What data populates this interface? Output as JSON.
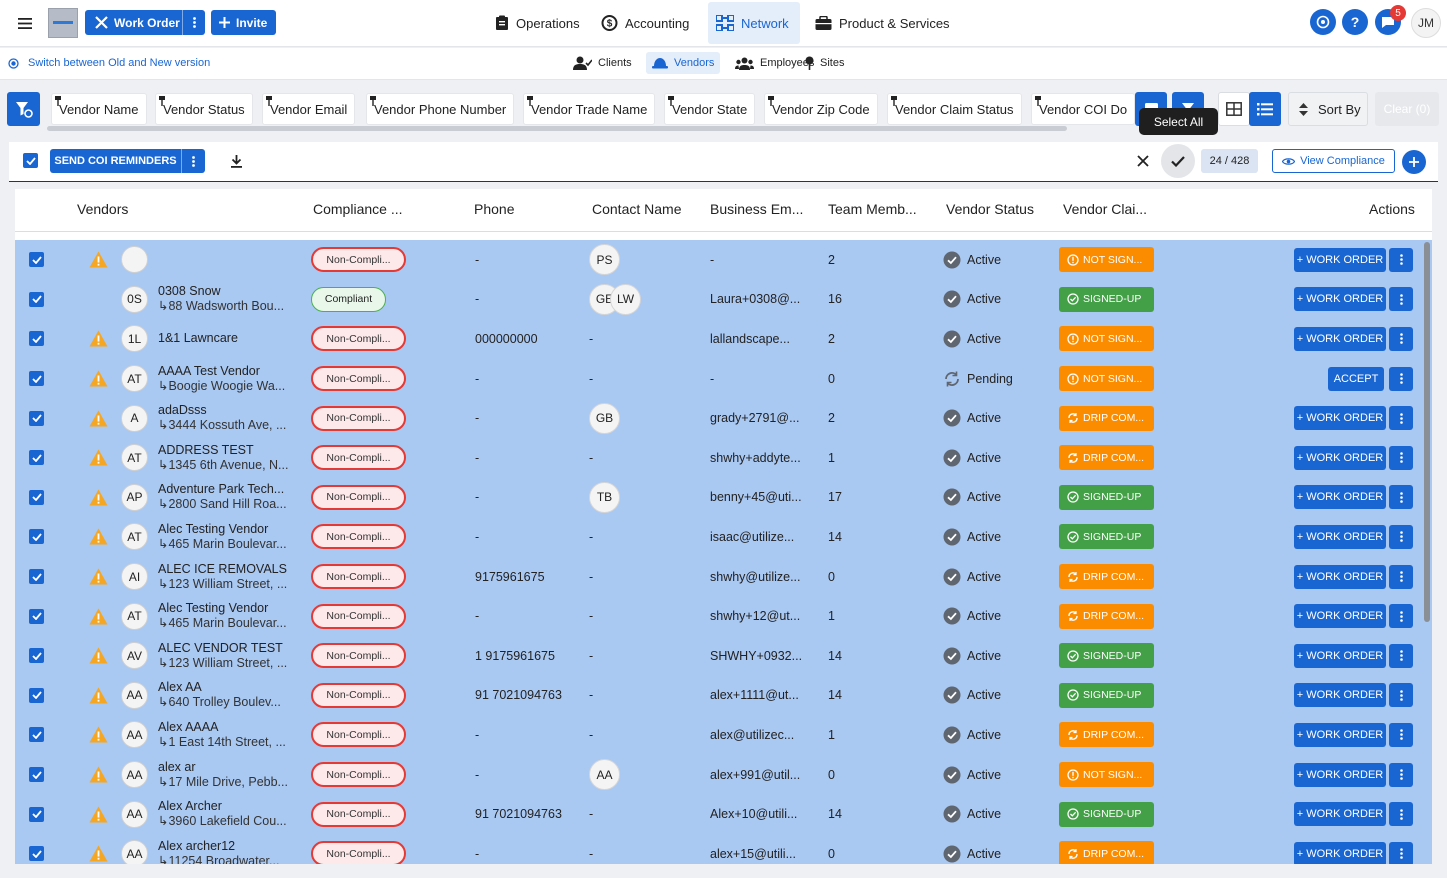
{
  "app": {
    "logo_text": "logo"
  },
  "topbar": {
    "work_order_label": "Work Order",
    "invite_label": "Invite",
    "nav": [
      {
        "label": "Operations",
        "icon": "clipboard-icon"
      },
      {
        "label": "Accounting",
        "icon": "money-icon"
      },
      {
        "label": "Network",
        "icon": "network-icon",
        "active": true
      },
      {
        "label": "Product & Services",
        "icon": "briefcase-icon"
      }
    ],
    "notification_count": "5",
    "help_label": "?",
    "user_initials": "JM"
  },
  "subbar": {
    "switch_label": "Switch between Old and New version",
    "tabs": [
      {
        "label": "Clients",
        "icon": "user-icon"
      },
      {
        "label": "Vendors",
        "icon": "hardhat-icon",
        "active": true
      },
      {
        "label": "Employees",
        "icon": "team-icon"
      },
      {
        "label": "Sites",
        "icon": "pin-icon"
      }
    ]
  },
  "filters": {
    "chips": [
      "Vendor Name",
      "Vendor Status",
      "Vendor Email",
      "Vendor Phone Number",
      "Vendor Trade Name",
      "Vendor State",
      "Vendor Zip Code",
      "Vendor Claim Status",
      "Vendor COI Do"
    ],
    "tooltip": "Select All",
    "sort_label": "Sort By",
    "clear_label": "Clear (0)"
  },
  "actionbar": {
    "send_label": "SEND COI REMINDERS",
    "counter": "24 / 428",
    "view_compliance_label": "View Compliance"
  },
  "table": {
    "headers": {
      "vendors": "Vendors",
      "compliance": "Compliance ...",
      "phone": "Phone",
      "contact": "Contact Name",
      "email": "Business Em...",
      "team": "Team Memb...",
      "status": "Vendor Status",
      "claim": "Vendor Clai...",
      "actions": "Actions"
    },
    "rows": [
      {
        "warn": true,
        "initials": "",
        "name": "",
        "address": "",
        "compliance": "Non-Compli...",
        "compliance_type": "non",
        "phone": "-",
        "contacts": [
          "PS"
        ],
        "email": "-",
        "team": "2",
        "status": "Active",
        "claim": "NOT SIGN...",
        "claim_type": "notsigned",
        "action": "+ WORK ORDER"
      },
      {
        "warn": false,
        "initials": "0S",
        "name": "0308 Snow",
        "address": "↳88 Wadsworth Bou...",
        "compliance": "Compliant",
        "compliance_type": "comp",
        "phone": "-",
        "contacts": [
          "GE",
          "LW"
        ],
        "email": "Laura+0308@...",
        "team": "16",
        "status": "Active",
        "claim": "SIGNED-UP",
        "claim_type": "signed",
        "action": "+ WORK ORDER"
      },
      {
        "warn": true,
        "initials": "1L",
        "name": "1&1 Lawncare",
        "address": "",
        "compliance": "Non-Compli...",
        "compliance_type": "non",
        "phone": "000000000",
        "contacts": [],
        "email": "lallandscape...",
        "team": "2",
        "status": "Active",
        "claim": "NOT SIGN...",
        "claim_type": "notsigned",
        "action": "+ WORK ORDER"
      },
      {
        "warn": true,
        "initials": "AT",
        "name": "AAAA Test Vendor",
        "address": "↳Boogie Woogie Wa...",
        "compliance": "Non-Compli...",
        "compliance_type": "non",
        "phone": "-",
        "contacts": [],
        "email": "-",
        "team": "0",
        "status": "Pending",
        "claim": "NOT SIGN...",
        "claim_type": "notsigned",
        "action": "ACCEPT"
      },
      {
        "warn": true,
        "initials": "A",
        "name": "adaDsss",
        "address": "↳3444 Kossuth Ave, ...",
        "compliance": "Non-Compli...",
        "compliance_type": "non",
        "phone": "-",
        "contacts": [
          "GB"
        ],
        "email": "grady+2791@...",
        "team": "2",
        "status": "Active",
        "claim": "DRIP COM...",
        "claim_type": "drip",
        "action": "+ WORK ORDER"
      },
      {
        "warn": true,
        "initials": "AT",
        "name": "ADDRESS TEST",
        "address": "↳1345 6th Avenue, N...",
        "compliance": "Non-Compli...",
        "compliance_type": "non",
        "phone": "-",
        "contacts": [],
        "email": "shwhy+addyte...",
        "team": "1",
        "status": "Active",
        "claim": "DRIP COM...",
        "claim_type": "drip",
        "action": "+ WORK ORDER"
      },
      {
        "warn": true,
        "initials": "AP",
        "name": "Adventure Park Tech...",
        "address": "↳2800 Sand Hill Roa...",
        "compliance": "Non-Compli...",
        "compliance_type": "non",
        "phone": "-",
        "contacts": [
          "TB"
        ],
        "email": "benny+45@uti...",
        "team": "17",
        "status": "Active",
        "claim": "SIGNED-UP",
        "claim_type": "signed",
        "action": "+ WORK ORDER"
      },
      {
        "warn": true,
        "initials": "AT",
        "name": "Alec Testing Vendor",
        "address": "↳465 Marin Boulevar...",
        "compliance": "Non-Compli...",
        "compliance_type": "non",
        "phone": "-",
        "contacts": [],
        "email": "isaac@utilize...",
        "team": "14",
        "status": "Active",
        "claim": "SIGNED-UP",
        "claim_type": "signed",
        "action": "+ WORK ORDER"
      },
      {
        "warn": true,
        "initials": "AI",
        "name": "ALEC ICE REMOVALS",
        "address": "↳123 William Street, ...",
        "compliance": "Non-Compli...",
        "compliance_type": "non",
        "phone": "9175961675",
        "contacts": [],
        "email": "shwhy@utilize...",
        "team": "0",
        "status": "Active",
        "claim": "DRIP COM...",
        "claim_type": "drip",
        "action": "+ WORK ORDER"
      },
      {
        "warn": true,
        "initials": "AT",
        "name": "Alec Testing Vendor",
        "address": "↳465 Marin Boulevar...",
        "compliance": "Non-Compli...",
        "compliance_type": "non",
        "phone": "-",
        "contacts": [],
        "email": "shwhy+12@ut...",
        "team": "1",
        "status": "Active",
        "claim": "DRIP COM...",
        "claim_type": "drip",
        "action": "+ WORK ORDER"
      },
      {
        "warn": true,
        "initials": "AV",
        "name": "ALEC VENDOR TEST",
        "address": "↳123 William Street, ...",
        "compliance": "Non-Compli...",
        "compliance_type": "non",
        "phone": "1 9175961675",
        "contacts": [],
        "email": "SHWHY+0932...",
        "team": "14",
        "status": "Active",
        "claim": "SIGNED-UP",
        "claim_type": "signed",
        "action": "+ WORK ORDER"
      },
      {
        "warn": true,
        "initials": "AA",
        "name": "Alex AA",
        "address": "↳640 Trolley Boulev...",
        "compliance": "Non-Compli...",
        "compliance_type": "non",
        "phone": "91 7021094763",
        "contacts": [],
        "email": "alex+1111@ut...",
        "team": "14",
        "status": "Active",
        "claim": "SIGNED-UP",
        "claim_type": "signed",
        "action": "+ WORK ORDER"
      },
      {
        "warn": true,
        "initials": "AA",
        "name": "Alex AAAA",
        "address": "↳1 East 14th Street, ...",
        "compliance": "Non-Compli...",
        "compliance_type": "non",
        "phone": "-",
        "contacts": [],
        "email": "alex@utilizec...",
        "team": "1",
        "status": "Active",
        "claim": "DRIP COM...",
        "claim_type": "drip",
        "action": "+ WORK ORDER"
      },
      {
        "warn": true,
        "initials": "AA",
        "name": "alex ar",
        "address": "↳17 Mile Drive, Pebb...",
        "compliance": "Non-Compli...",
        "compliance_type": "non",
        "phone": "-",
        "contacts": [
          "AA"
        ],
        "email": "alex+991@util...",
        "team": "0",
        "status": "Active",
        "claim": "NOT SIGN...",
        "claim_type": "notsigned",
        "action": "+ WORK ORDER"
      },
      {
        "warn": true,
        "initials": "AA",
        "name": "Alex Archer",
        "address": "↳3960 Lakefield Cou...",
        "compliance": "Non-Compli...",
        "compliance_type": "non",
        "phone": "91 7021094763",
        "contacts": [],
        "email": "Alex+10@utili...",
        "team": "14",
        "status": "Active",
        "claim": "SIGNED-UP",
        "claim_type": "signed",
        "action": "+ WORK ORDER"
      },
      {
        "warn": true,
        "initials": "AA",
        "name": "Alex archer12",
        "address": "↳11254 Broadwater...",
        "compliance": "Non-Compli...",
        "compliance_type": "non",
        "phone": "-",
        "contacts": [],
        "email": "alex+15@utili...",
        "team": "0",
        "status": "Active",
        "claim": "DRIP COM...",
        "claim_type": "drip",
        "action": "+ WORK ORDER"
      }
    ]
  }
}
